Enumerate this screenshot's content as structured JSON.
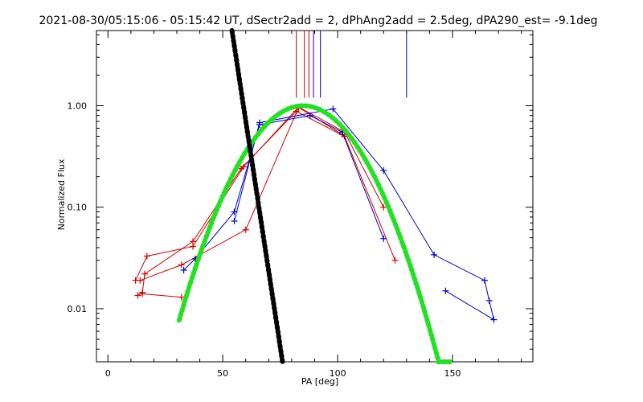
{
  "chart_data": {
    "type": "line",
    "title": "2021-08-30/05:15:06 - 05:15:42 UT, dSectr2add = 2, dPhAng2add = 2.5deg, dPA290_est= -9.1deg",
    "xlabel": "PA [deg]",
    "ylabel": "Normalized Flux",
    "xlim": [
      -5,
      185
    ],
    "ylim": [
      0.003,
      5.5
    ],
    "yscale": "log",
    "x_ticks": [
      0,
      50,
      100,
      150
    ],
    "x_tick_labels": [
      "0",
      "50",
      "100",
      "150"
    ],
    "y_ticks": [
      0.01,
      0.1,
      1.0
    ],
    "y_tick_labels": [
      "0.01",
      "0.10",
      "1.00"
    ],
    "grid": false,
    "colors": {
      "red": "#d40000",
      "blue": "#0000c0",
      "green": "#22e022",
      "black": "#000000"
    },
    "series": [
      {
        "color": "red",
        "points": [
          [
            13,
            0.0135
          ],
          [
            15,
            0.0145
          ],
          [
            16,
            0.022
          ],
          [
            37,
            0.046
          ],
          [
            58,
            0.24
          ],
          [
            82,
            0.88
          ],
          [
            103,
            0.5
          ],
          [
            125,
            0.03
          ]
        ]
      },
      {
        "color": "red",
        "points": [
          [
            12,
            0.019
          ],
          [
            17,
            0.033
          ],
          [
            37,
            0.041
          ],
          [
            59,
            0.25
          ],
          [
            83,
            0.97
          ],
          [
            103,
            0.55
          ],
          [
            120,
            0.1
          ]
        ]
      },
      {
        "color": "red",
        "points": [
          [
            14,
            0.019
          ],
          [
            32,
            0.027
          ],
          [
            60,
            0.06
          ],
          [
            83,
            0.96
          ],
          [
            102,
            0.52
          ]
        ]
      },
      {
        "color": "red",
        "points": [
          [
            32,
            0.013
          ],
          [
            15,
            0.014
          ]
        ]
      },
      {
        "color": "blue",
        "points": [
          [
            33,
            0.024
          ],
          [
            38,
            0.031
          ],
          [
            55,
            0.09
          ],
          [
            66,
            0.65
          ],
          [
            88,
            0.8
          ],
          [
            102,
            0.55
          ],
          [
            120,
            0.049
          ]
        ]
      },
      {
        "color": "blue",
        "points": [
          [
            55,
            0.073
          ],
          [
            66,
            0.68
          ],
          [
            98,
            0.93
          ],
          [
            120,
            0.23
          ],
          [
            142,
            0.034
          ],
          [
            164,
            0.019
          ],
          [
            166,
            0.012
          ],
          [
            168,
            0.0078
          ],
          [
            147,
            0.015
          ]
        ]
      }
    ],
    "model_curves": [
      {
        "color": "green",
        "style": "dotted",
        "shape": "gaussian",
        "peak_x": 85,
        "peak_y": 1.0,
        "x_range": [
          31,
          149
        ],
        "y_at_ends": 0.003
      },
      {
        "color": "black",
        "style": "dotted",
        "x_range": [
          54,
          76
        ],
        "y_at_start": 5.5,
        "y_at_end": 0.003
      }
    ],
    "vertical_markers": [
      {
        "x": 82,
        "color": "red",
        "y_from": 1.2,
        "y_to": 5.5
      },
      {
        "x": 85.5,
        "color": "red",
        "y_from": 1.2,
        "y_to": 5.5
      },
      {
        "x": 87.5,
        "color": "red",
        "y_from": 1.2,
        "y_to": 5.5
      },
      {
        "x": 89.5,
        "color": "blue",
        "y_from": 1.2,
        "y_to": 5.5
      },
      {
        "x": 92.5,
        "color": "blue",
        "y_from": 1.2,
        "y_to": 5.5
      },
      {
        "x": 130,
        "color": "blue",
        "y_from": 1.2,
        "y_to": 5.5
      }
    ]
  }
}
